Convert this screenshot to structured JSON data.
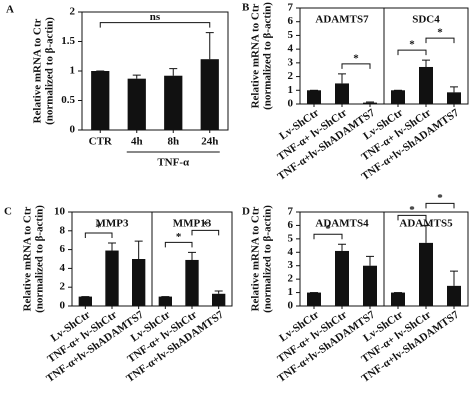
{
  "chart_data": [
    {
      "type": "bar",
      "panel": "A",
      "ylabel": [
        "Relative mRNA to Ctr",
        "(normalized  to β-actin)"
      ],
      "categories": [
        "CTR",
        "4h",
        "8h",
        "24h"
      ],
      "values": [
        1,
        0.87,
        0.92,
        1.2
      ],
      "errors": [
        0,
        0.06,
        0.12,
        0.45
      ],
      "color": "#111111",
      "ylim": [
        0,
        2
      ],
      "yticks": [
        0,
        0.5,
        1,
        1.5,
        2
      ],
      "group_label": "TNF-α",
      "group_members": [
        "4h",
        "8h",
        "24h"
      ],
      "brackets": [
        {
          "label": "ns",
          "between": [
            "CTR",
            "24h"
          ]
        }
      ]
    },
    {
      "type": "bar",
      "panel": "B",
      "ylabel": [
        "Relative mRNA to Ctr",
        "(normalized  to β-actin)"
      ],
      "categories": [
        "Lv-ShCtr",
        "TNF-α+ lv-ShCtr",
        "TNF-α+lv-ShADAMTS7"
      ],
      "color": "#111111",
      "ylim": [
        0,
        7
      ],
      "yticks": [
        0,
        1,
        2,
        3,
        4,
        5,
        6,
        7
      ],
      "groups": [
        {
          "name": "ADAMTS7",
          "values": [
            1,
            1.5,
            0.1
          ],
          "errors": [
            0,
            0.7,
            0.05
          ],
          "brackets": [
            {
              "label": "*",
              "between": [
                "TNF-α+ lv-ShCtr",
                "TNF-α+lv-ShADAMTS7"
              ]
            }
          ]
        },
        {
          "name": "SDC4",
          "values": [
            1,
            2.7,
            0.85
          ],
          "errors": [
            0,
            0.5,
            0.4
          ],
          "brackets": [
            {
              "label": "*",
              "between": [
                "Lv-ShCtr",
                "TNF-α+ lv-ShCtr"
              ]
            },
            {
              "label": "*",
              "between": [
                "TNF-α+ lv-ShCtr",
                "TNF-α+lv-ShADAMTS7"
              ]
            }
          ]
        }
      ]
    },
    {
      "type": "bar",
      "panel": "C",
      "ylabel": [
        "Relative mRNA to Ctr",
        "(normalized  to β-actin)"
      ],
      "categories": [
        "Lv-ShCtr",
        "TNF-α+ lv-ShCtr",
        "TNF-α+lv-ShADAMTS7"
      ],
      "color": "#111111",
      "ylim": [
        0,
        10
      ],
      "yticks": [
        0,
        2,
        4,
        6,
        8,
        10
      ],
      "groups": [
        {
          "name": "MMP3",
          "values": [
            1,
            5.9,
            5.0
          ],
          "errors": [
            0,
            0.8,
            1.9
          ],
          "brackets": [
            {
              "label": "*",
              "between": [
                "Lv-ShCtr",
                "TNF-α+ lv-ShCtr"
              ]
            }
          ]
        },
        {
          "name": "MMP13",
          "values": [
            1,
            4.9,
            1.3
          ],
          "errors": [
            0,
            0.8,
            0.3
          ],
          "brackets": [
            {
              "label": "*",
              "between": [
                "Lv-ShCtr",
                "TNF-α+ lv-ShCtr"
              ]
            },
            {
              "label": "*",
              "between": [
                "TNF-α+ lv-ShCtr",
                "TNF-α+lv-ShADAMTS7"
              ]
            }
          ]
        }
      ]
    },
    {
      "type": "bar",
      "panel": "D",
      "ylabel": [
        "Relative mRNA to Ctr",
        "(normalized  to β-actin)"
      ],
      "categories": [
        "Lv-ShCtr",
        "TNF-α+ lv-ShCtr",
        "TNF-α+lv-ShADAMTS7"
      ],
      "color": "#111111",
      "ylim": [
        0,
        7
      ],
      "yticks": [
        0,
        1,
        2,
        3,
        4,
        5,
        6,
        7
      ],
      "groups": [
        {
          "name": "ADAMTS4",
          "values": [
            1,
            4.1,
            3.0
          ],
          "errors": [
            0,
            0.5,
            0.7
          ],
          "brackets": [
            {
              "label": "*",
              "between": [
                "Lv-ShCtr",
                "TNF-α+ lv-ShCtr"
              ]
            }
          ]
        },
        {
          "name": "ADAMTS5",
          "values": [
            1,
            4.7,
            1.5
          ],
          "errors": [
            0,
            1.3,
            1.1
          ],
          "brackets": [
            {
              "label": "*",
              "between": [
                "Lv-ShCtr",
                "TNF-α+ lv-ShCtr"
              ]
            },
            {
              "label": "*",
              "between": [
                "TNF-α+ lv-ShCtr",
                "TNF-α+lv-ShADAMTS7"
              ]
            }
          ]
        }
      ]
    }
  ]
}
